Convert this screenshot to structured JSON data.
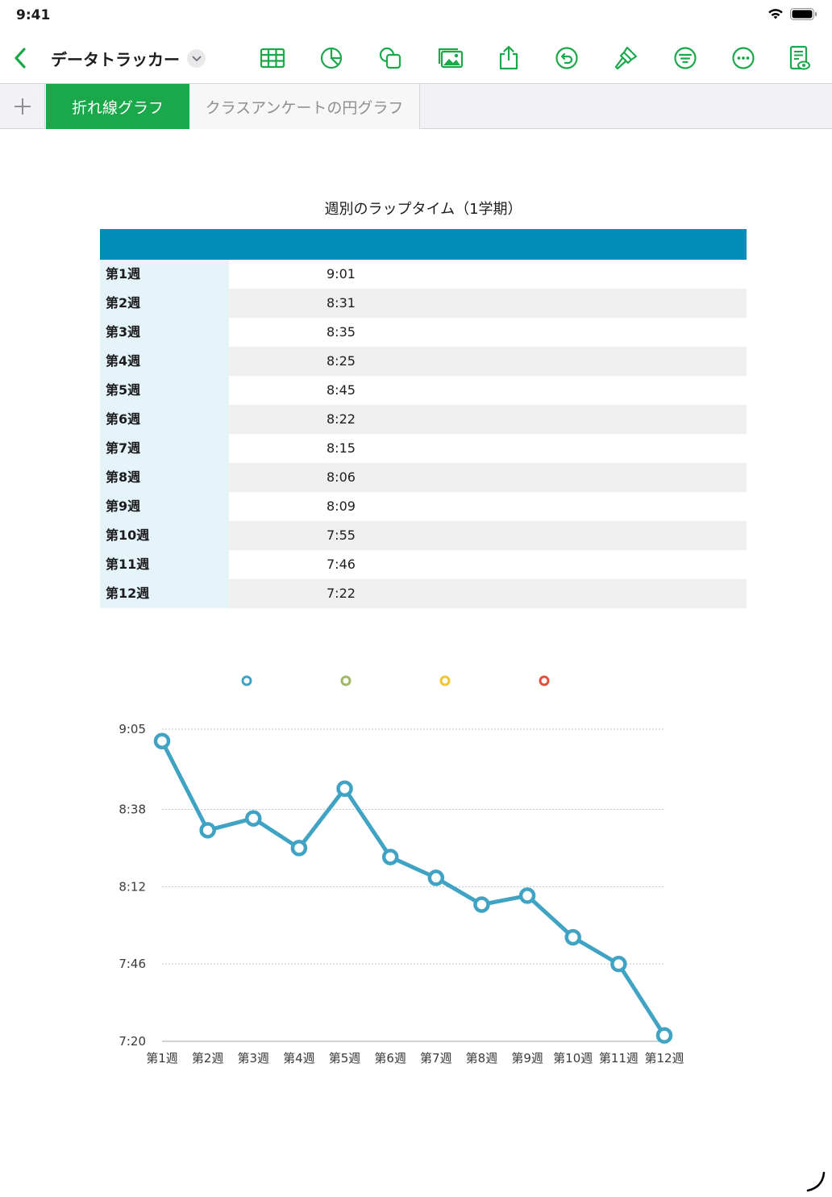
{
  "status_bar": {
    "time": "9:41"
  },
  "toolbar": {
    "title": "データトラッカー",
    "icons": [
      "table-icon",
      "chart-icon",
      "shapes-icon",
      "media-icon",
      "share-icon",
      "undo-icon",
      "format-brush-icon",
      "filter-icon",
      "more-icon",
      "reader-view-icon"
    ]
  },
  "tabs": [
    {
      "label": "折れ線グラフ",
      "active": true
    },
    {
      "label": "クラスアンケートの円グラフ",
      "active": false
    }
  ],
  "table": {
    "title": "週別のラップタイム（1学期）",
    "rows": [
      {
        "label": "第1週",
        "value": "9:01"
      },
      {
        "label": "第2週",
        "value": "8:31"
      },
      {
        "label": "第3週",
        "value": "8:35"
      },
      {
        "label": "第4週",
        "value": "8:25"
      },
      {
        "label": "第5週",
        "value": "8:45"
      },
      {
        "label": "第6週",
        "value": "8:22"
      },
      {
        "label": "第7週",
        "value": "8:15"
      },
      {
        "label": "第8週",
        "value": "8:06"
      },
      {
        "label": "第9週",
        "value": "8:09"
      },
      {
        "label": "第10週",
        "value": "7:55"
      },
      {
        "label": "第11週",
        "value": "7:46"
      },
      {
        "label": "第12週",
        "value": "7:22"
      }
    ]
  },
  "chart_data": {
    "type": "line",
    "categories": [
      "第1週",
      "第2週",
      "第3週",
      "第4週",
      "第5週",
      "第6週",
      "第7週",
      "第8週",
      "第9週",
      "第10週",
      "第11週",
      "第12週"
    ],
    "series": [
      {
        "values": [
          "9:01",
          "8:31",
          "8:35",
          "8:25",
          "8:45",
          "8:22",
          "8:15",
          "8:06",
          "8:09",
          "7:55",
          "7:46",
          "7:22"
        ],
        "color": "#41a3c4"
      }
    ],
    "legend_colors": [
      "#41a3c4",
      "#9fb86b",
      "#f0c531",
      "#e0503e"
    ],
    "y_ticks": [
      "9:05",
      "8:38",
      "8:12",
      "7:46",
      "7:20"
    ],
    "ylim": [
      "7:20",
      "9:05"
    ],
    "grid": true,
    "legend_position": "top"
  },
  "colors": {
    "accent": "#1aa84a",
    "table_header": "#008db7",
    "label_column": "#e4f4f9"
  }
}
